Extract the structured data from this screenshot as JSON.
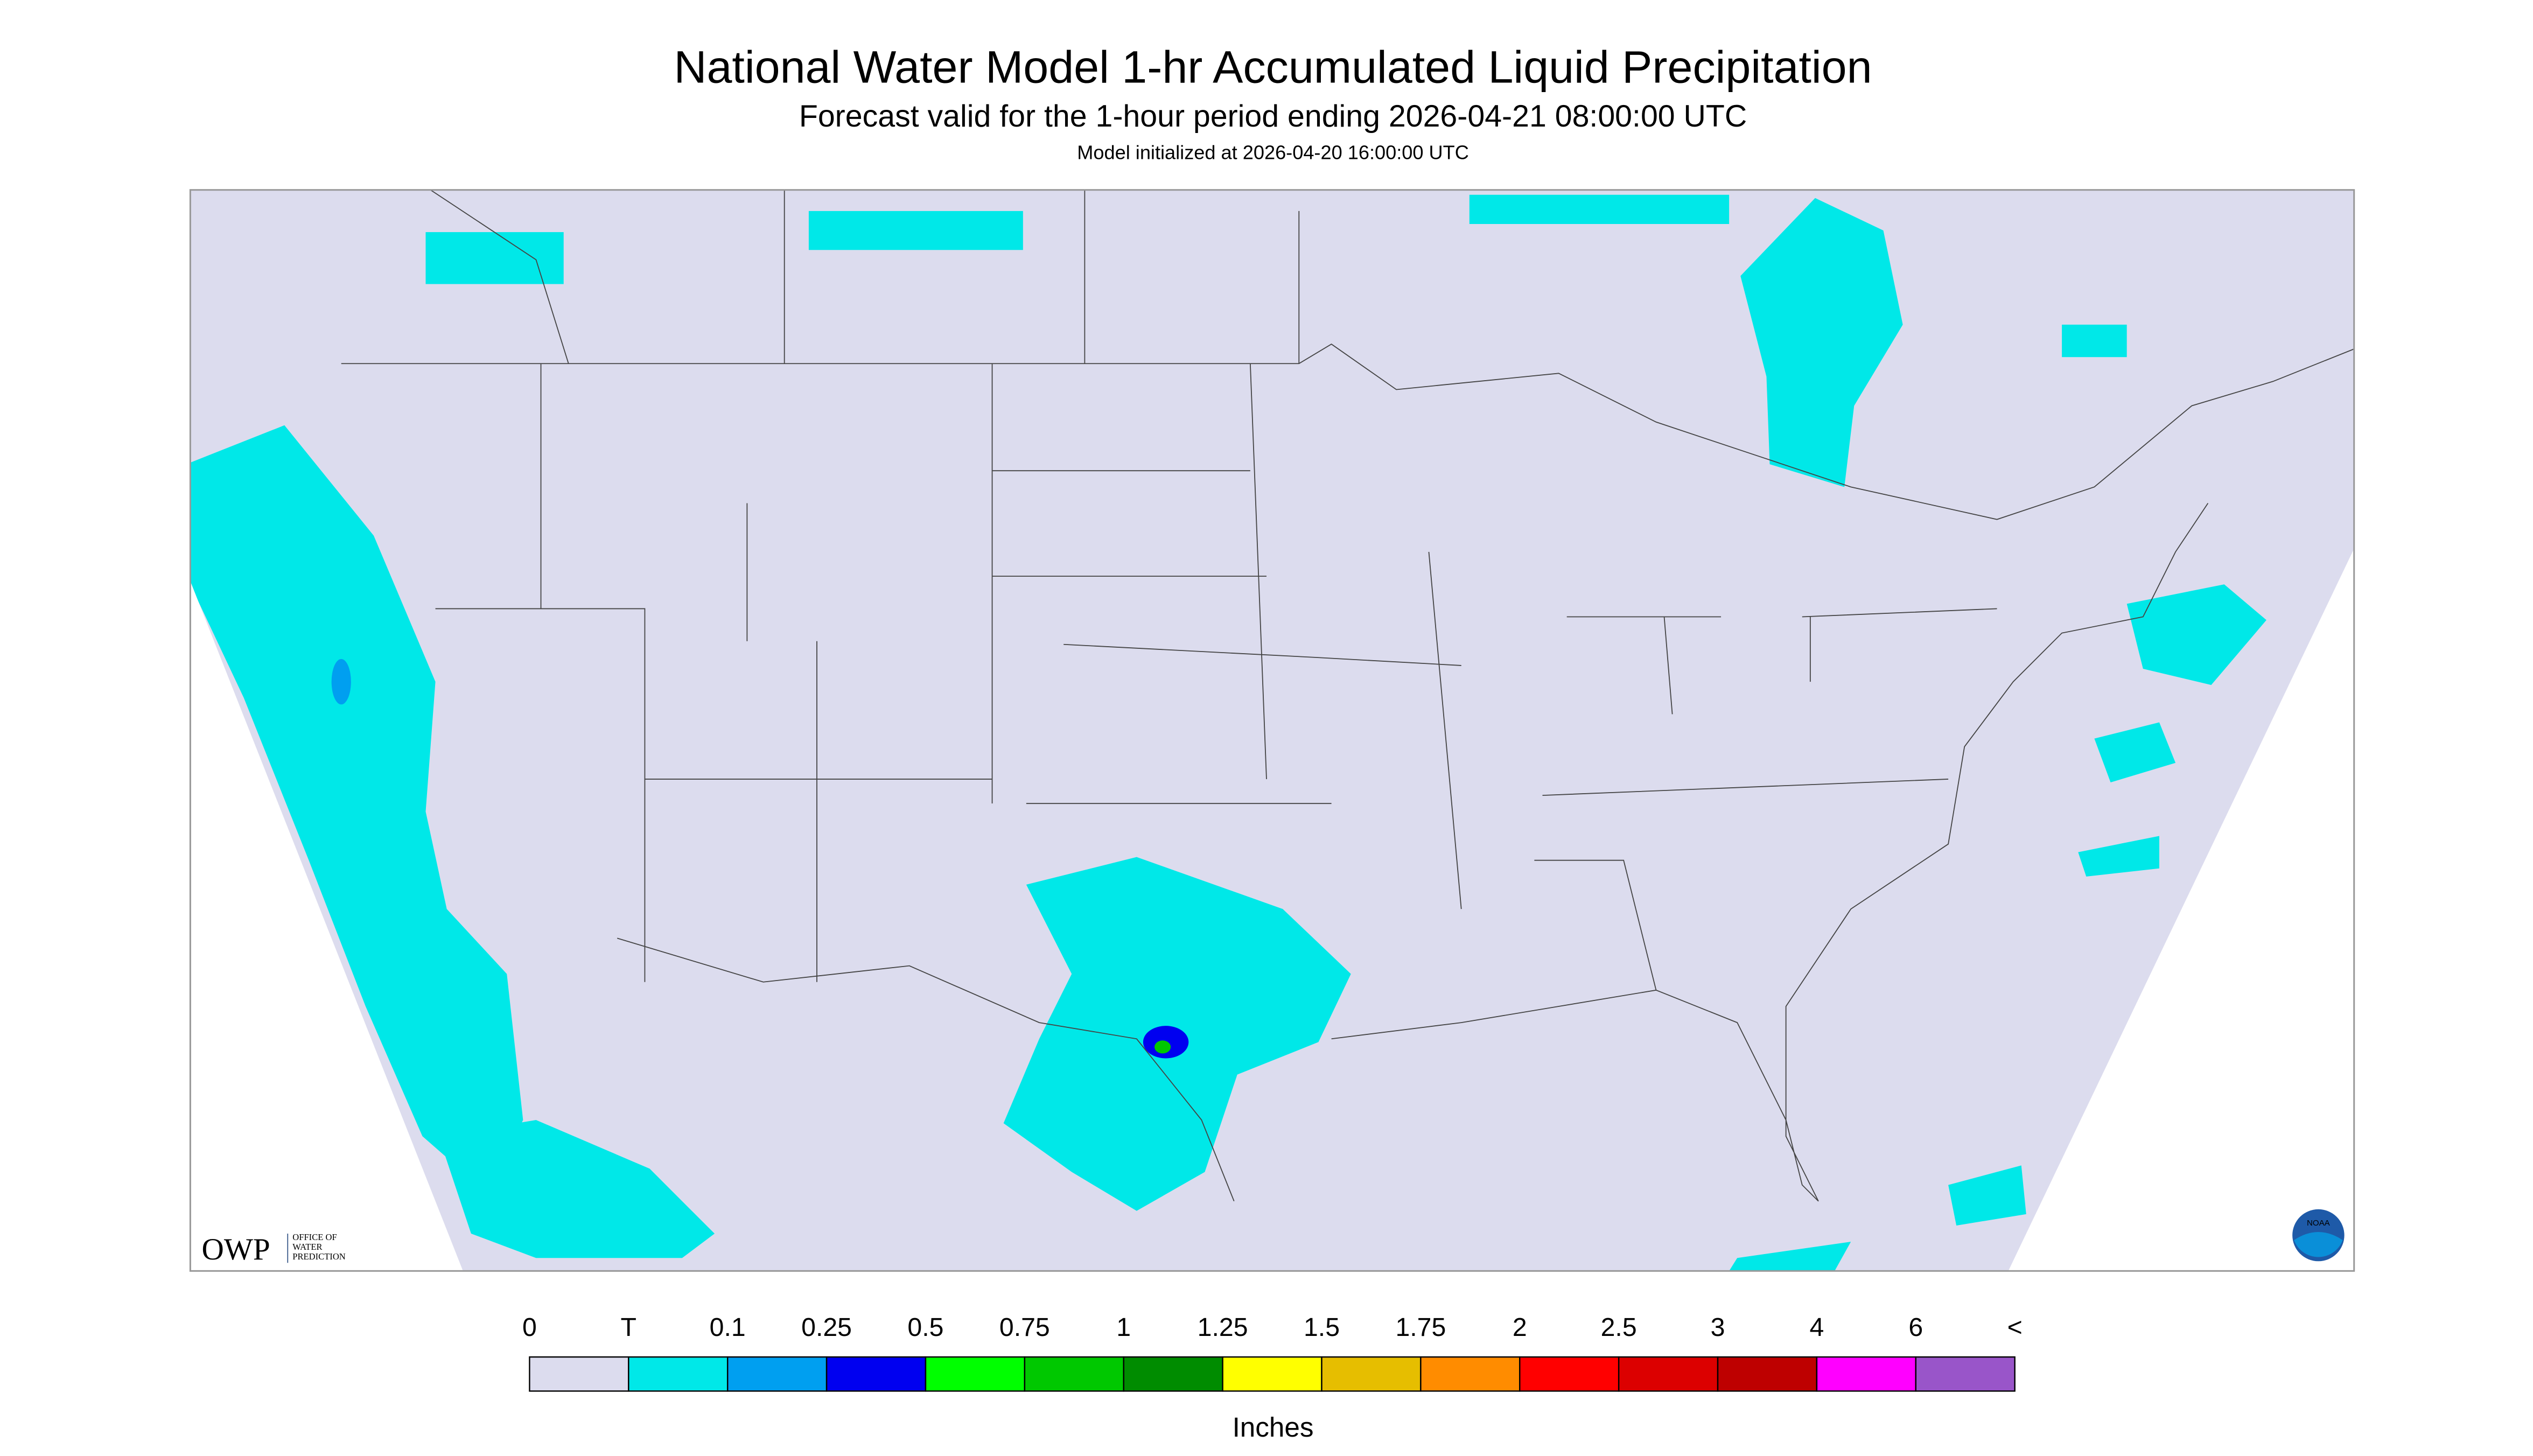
{
  "header": {
    "title": "National Water Model 1-hr Accumulated Liquid Precipitation",
    "subtitle": "Forecast valid for the 1-hour period ending 2026-04-21 08:00:00 UTC",
    "init": "Model initialized at 2026-04-20 16:00:00 UTC"
  },
  "legend": {
    "labels": [
      "0",
      "T",
      "0.1",
      "0.25",
      "0.5",
      "0.75",
      "1",
      "1.25",
      "1.5",
      "1.75",
      "2",
      "2.5",
      "3",
      "4",
      "6",
      "<"
    ],
    "colors": [
      "#dcdcee",
      "#00e8e8",
      "#009ff0",
      "#0000f0",
      "#00ff00",
      "#00c800",
      "#008c00",
      "#ffff00",
      "#e6be00",
      "#ff8c00",
      "#ff0000",
      "#dc0000",
      "#be0000",
      "#ff00ff",
      "#9955c9"
    ],
    "unit": "Inches"
  },
  "logos": {
    "owp": "OWP",
    "owp_lines": [
      "OFFICE OF",
      "WATER",
      "PREDICTION"
    ],
    "noaa": "NOAA"
  }
}
